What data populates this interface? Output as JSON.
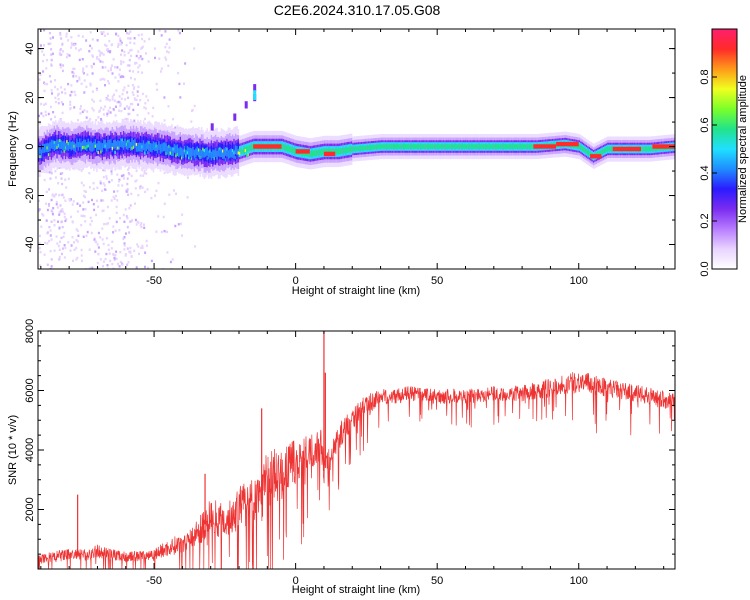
{
  "title": "C2E6.2024.310.17.05.G08",
  "colors": {
    "snr_line": "#ee3333",
    "axis": "#000000"
  },
  "chart_data": [
    {
      "type": "heatmap",
      "xlabel": "Height of straight line (km)",
      "ylabel": "Frequency (Hz)",
      "xlim": [
        -91,
        134
      ],
      "ylim": [
        -50,
        48
      ],
      "xticks": [
        -50,
        0,
        50,
        100
      ],
      "yticks": [
        -40,
        -20,
        0,
        20,
        40
      ],
      "colorbar": {
        "label": "Normalized spectral amplitude",
        "range": [
          0,
          1
        ],
        "ticks": [
          "0.0",
          "0.2",
          "0.4",
          "0.6",
          "0.8"
        ],
        "tick_values": [
          0.0,
          0.2,
          0.4,
          0.6,
          0.8
        ],
        "colormap": [
          "#ffffff",
          "#e9d4ff",
          "#b77cff",
          "#7b2cf0",
          "#2a1bff",
          "#1f8dff",
          "#1fe0ff",
          "#22e38a",
          "#7cff2a",
          "#f0ff1f",
          "#ff9a1a",
          "#ff2a2a",
          "#ff1f6e"
        ]
      },
      "ridge": [
        {
          "x": -90,
          "f": -2
        },
        {
          "x": -85,
          "f": 1
        },
        {
          "x": -80,
          "f": 0
        },
        {
          "x": -75,
          "f": 1
        },
        {
          "x": -70,
          "f": 0
        },
        {
          "x": -60,
          "f": 1
        },
        {
          "x": -50,
          "f": 0
        },
        {
          "x": -45,
          "f": -1
        },
        {
          "x": -40,
          "f": -2
        },
        {
          "x": -30,
          "f": -3
        },
        {
          "x": -20,
          "f": -2
        },
        {
          "x": -15,
          "f": 0
        },
        {
          "x": -10,
          "f": 0
        },
        {
          "x": -5,
          "f": 0
        },
        {
          "x": 0,
          "f": -2
        },
        {
          "x": 5,
          "f": -3
        },
        {
          "x": 10,
          "f": -2
        },
        {
          "x": 15,
          "f": -2
        },
        {
          "x": 20,
          "f": -1
        },
        {
          "x": 30,
          "f": 0
        },
        {
          "x": 50,
          "f": 0
        },
        {
          "x": 70,
          "f": 0
        },
        {
          "x": 85,
          "f": 0
        },
        {
          "x": 95,
          "f": 1
        },
        {
          "x": 100,
          "f": 0
        },
        {
          "x": 105,
          "f": -4
        },
        {
          "x": 110,
          "f": -1
        },
        {
          "x": 115,
          "f": -1
        },
        {
          "x": 125,
          "f": -1
        },
        {
          "x": 134,
          "f": 0
        }
      ],
      "bright_segments": [
        {
          "x0": -15,
          "x1": -5,
          "f": 0
        },
        {
          "x0": 0,
          "x1": 5,
          "f": -2
        },
        {
          "x0": 10,
          "x1": 14,
          "f": -3
        },
        {
          "x0": 84,
          "x1": 92,
          "f": 0
        },
        {
          "x0": 92,
          "x1": 100,
          "f": 1
        },
        {
          "x0": 104,
          "x1": 108,
          "f": -4
        },
        {
          "x0": 112,
          "x1": 122,
          "f": -1
        },
        {
          "x0": 126,
          "x1": 134,
          "f": 0
        }
      ],
      "spur": [
        {
          "x": -15,
          "f": 20
        },
        {
          "x": -15,
          "f": 24
        },
        {
          "x": -18,
          "f": 17
        },
        {
          "x": -22,
          "f": 12
        },
        {
          "x": -30,
          "f": 8
        }
      ]
    },
    {
      "type": "line",
      "xlabel": "Height of straight line (km)",
      "ylabel": "SNR (10 * v/v)",
      "xlim": [
        -91,
        134
      ],
      "ylim": [
        0,
        8000
      ],
      "xticks": [
        -50,
        0,
        50,
        100
      ],
      "yticks": [
        2000,
        4000,
        6000,
        8000
      ],
      "series": [
        {
          "x": [
            -91,
            -85,
            -80,
            -75,
            -70,
            -65,
            -60,
            -55,
            -50,
            -45,
            -40,
            -35,
            -32,
            -30,
            -25,
            -20,
            -15,
            -12,
            -10,
            -5,
            0,
            5,
            8,
            9,
            10,
            12,
            15,
            20,
            25,
            30,
            35,
            40,
            50,
            60,
            70,
            80,
            85,
            90,
            95,
            100,
            105,
            110,
            115,
            120,
            125,
            130,
            134
          ],
          "y": [
            300,
            400,
            500,
            450,
            600,
            500,
            400,
            450,
            500,
            700,
            900,
            1200,
            1500,
            1800,
            1600,
            2000,
            2300,
            2600,
            3000,
            3200,
            3600,
            3900,
            4100,
            4300,
            3300,
            3700,
            4400,
            5100,
            5500,
            5800,
            5800,
            5900,
            5800,
            5800,
            5900,
            5900,
            6000,
            6100,
            6200,
            6300,
            6200,
            6100,
            6000,
            5900,
            5800,
            5700,
            5600
          ],
          "amplitude": [
            350,
            400,
            450,
            400,
            450,
            400,
            350,
            400,
            450,
            550,
            700,
            900,
            1100,
            1300,
            1200,
            1600,
            1800,
            2000,
            2100,
            1800,
            1500,
            1200,
            1100,
            1000,
            900,
            900,
            900,
            800,
            700,
            500,
            500,
            500,
            500,
            500,
            500,
            550,
            600,
            650,
            700,
            750,
            700,
            650,
            600,
            600,
            600,
            600,
            600
          ],
          "peaks": [
            {
              "x": 10,
              "y": 8000
            },
            {
              "x": 10.5,
              "y": 6600
            },
            {
              "x": -12,
              "y": 5400
            },
            {
              "x": -32,
              "y": 3200
            },
            {
              "x": -77,
              "y": 2500
            }
          ]
        }
      ]
    }
  ]
}
